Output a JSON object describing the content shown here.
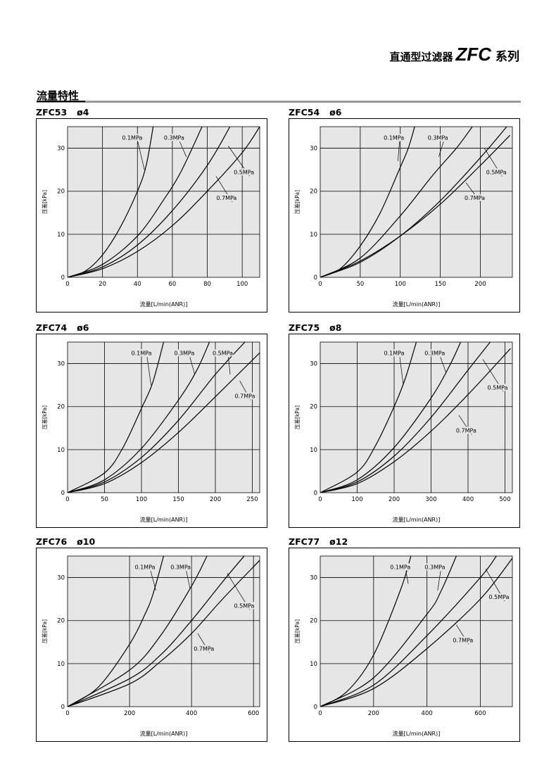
{
  "header": {
    "jp": "直通型过滤器",
    "brand": "ZFC",
    "series": "系列"
  },
  "section_title": "流量特性",
  "chart_data": [
    {
      "type": "line",
      "title": "ZFC53",
      "subtitle": "ø4",
      "xlabel": "流量[L/min(ANR)]",
      "ylabel": "压差[kPa]",
      "xlim": [
        0,
        110
      ],
      "ylim": [
        0,
        35
      ],
      "xticks": [
        0,
        20,
        40,
        60,
        80,
        100
      ],
      "yticks": [
        0,
        10,
        20,
        30
      ],
      "grid": true,
      "series": [
        {
          "name": "0.1MPa",
          "x": [
            0,
            10,
            20,
            30,
            40,
            45,
            49
          ],
          "y": [
            0,
            1.4,
            5.2,
            11.5,
            20,
            26,
            35
          ]
        },
        {
          "name": "0.3MPa",
          "x": [
            0,
            20,
            40,
            55,
            65,
            77
          ],
          "y": [
            0,
            3,
            9.6,
            18,
            24.6,
            35
          ]
        },
        {
          "name": "0.5MPa",
          "x": [
            0,
            20,
            40,
            60,
            80,
            93
          ],
          "y": [
            0,
            2.4,
            7.5,
            15.5,
            26,
            35
          ]
        },
        {
          "name": "0.7MPa",
          "x": [
            0,
            20,
            40,
            60,
            80,
            100,
            110
          ],
          "y": [
            0,
            2,
            6,
            12,
            20,
            29,
            35
          ]
        }
      ],
      "annotations": [
        {
          "text": "0.1MPa",
          "x": 37,
          "y": 32,
          "tx": 44,
          "ty": 25
        },
        {
          "text": "0.3MPa",
          "x": 61,
          "y": 32,
          "tx": 68,
          "ty": 28
        },
        {
          "text": "0.5MPa",
          "x": 101,
          "y": 24,
          "tx": 92,
          "ty": 30.5
        },
        {
          "text": "0.7MPa",
          "x": 91,
          "y": 18,
          "tx": 85,
          "ty": 23.5
        }
      ]
    },
    {
      "type": "line",
      "title": "ZFC54",
      "subtitle": "ø6",
      "xlabel": "流量[L/min(ANR)]",
      "ylabel": "压差[kPa]",
      "xlim": [
        0,
        240
      ],
      "ylim": [
        0,
        35
      ],
      "xticks": [
        0,
        50,
        100,
        150,
        200
      ],
      "yticks": [
        0,
        10,
        20,
        30
      ],
      "grid": true,
      "series": [
        {
          "name": "0.1MPa",
          "x": [
            0,
            25,
            50,
            75,
            100,
            110,
            118
          ],
          "y": [
            0,
            2,
            7.3,
            15,
            25.6,
            30,
            35
          ]
        },
        {
          "name": "0.3MPa",
          "x": [
            0,
            50,
            100,
            140,
            170,
            190
          ],
          "y": [
            0,
            4.5,
            14.3,
            23.6,
            30,
            35
          ]
        },
        {
          "name": "0.5MPa",
          "x": [
            0,
            50,
            100,
            150,
            200,
            233
          ],
          "y": [
            0,
            3.5,
            9.6,
            17.8,
            27.8,
            35
          ]
        },
        {
          "name": "0.7MPa",
          "x": [
            0,
            50,
            100,
            150,
            200,
            237
          ],
          "y": [
            0,
            3.8,
            9.6,
            17,
            26,
            33
          ]
        }
      ],
      "annotations": [
        {
          "text": "0.1MPa",
          "x": 92,
          "y": 32,
          "tx": 97,
          "ty": 27
        },
        {
          "text": "0.3MPa",
          "x": 147,
          "y": 32,
          "tx": 148,
          "ty": 28
        },
        {
          "text": "0.5MPa",
          "x": 220,
          "y": 24,
          "tx": 205,
          "ty": 30
        },
        {
          "text": "0.7MPa",
          "x": 193,
          "y": 18,
          "tx": 182,
          "ty": 22
        }
      ]
    },
    {
      "type": "line",
      "title": "ZFC74",
      "subtitle": "ø6",
      "xlabel": "流量[L/min(ANR)]",
      "ylabel": "压差[kPa]",
      "xlim": [
        0,
        260
      ],
      "ylim": [
        0,
        35
      ],
      "xticks": [
        0,
        50,
        100,
        150,
        200,
        250
      ],
      "yticks": [
        0,
        10,
        20,
        30
      ],
      "grid": true,
      "series": [
        {
          "name": "0.1MPa",
          "x": [
            0,
            50,
            75,
            100,
            115,
            130
          ],
          "y": [
            0,
            4.6,
            10.5,
            19.6,
            25.5,
            35
          ]
        },
        {
          "name": "0.3MPa",
          "x": [
            0,
            50,
            100,
            150,
            175,
            192
          ],
          "y": [
            0,
            3,
            10.3,
            21.5,
            28.5,
            35
          ]
        },
        {
          "name": "0.5MPa",
          "x": [
            0,
            50,
            100,
            150,
            200,
            240
          ],
          "y": [
            0,
            2.5,
            8.2,
            16.8,
            27.5,
            35
          ]
        },
        {
          "name": "0.7MPa",
          "x": [
            0,
            50,
            100,
            150,
            200,
            260
          ],
          "y": [
            0,
            2.1,
            7,
            14,
            22.3,
            32.5
          ]
        }
      ],
      "annotations": [
        {
          "text": "0.1MPa",
          "x": 100,
          "y": 32,
          "tx": 113,
          "ty": 25
        },
        {
          "text": "0.3MPa",
          "x": 158,
          "y": 32,
          "tx": 172,
          "ty": 27.5
        },
        {
          "text": "0.5MPa",
          "x": 210,
          "y": 32,
          "tx": 220,
          "ty": 27.5
        },
        {
          "text": "0.7MPa",
          "x": 240,
          "y": 22,
          "tx": 233,
          "ty": 26
        }
      ]
    },
    {
      "type": "line",
      "title": "ZFC75",
      "subtitle": "ø8",
      "xlabel": "流量[L/min(ANR)]",
      "ylabel": "压差[kPa]",
      "xlim": [
        0,
        520
      ],
      "ylim": [
        0,
        35
      ],
      "xticks": [
        0,
        100,
        200,
        300,
        400,
        500
      ],
      "yticks": [
        0,
        10,
        20,
        30
      ],
      "grid": true,
      "series": [
        {
          "name": "0.1MPa",
          "x": [
            0,
            100,
            150,
            200,
            230,
            260
          ],
          "y": [
            0,
            4.8,
            11,
            20,
            26.5,
            35
          ]
        },
        {
          "name": "0.3MPa",
          "x": [
            0,
            100,
            200,
            300,
            350,
            380
          ],
          "y": [
            0,
            3,
            10.5,
            22,
            29.5,
            35
          ]
        },
        {
          "name": "0.5MPa",
          "x": [
            0,
            100,
            200,
            300,
            400,
            460
          ],
          "y": [
            0,
            2.5,
            8.5,
            17.5,
            28.5,
            35
          ]
        },
        {
          "name": "0.7MPa",
          "x": [
            0,
            100,
            200,
            300,
            400,
            515
          ],
          "y": [
            0,
            2.1,
            7.2,
            14.3,
            22.8,
            33.5
          ]
        }
      ],
      "annotations": [
        {
          "text": "0.1MPa",
          "x": 200,
          "y": 32,
          "tx": 225,
          "ty": 25
        },
        {
          "text": "0.3MPa",
          "x": 310,
          "y": 32,
          "tx": 340,
          "ty": 28
        },
        {
          "text": "0.5MPa",
          "x": 480,
          "y": 24,
          "tx": 440,
          "ty": 31
        },
        {
          "text": "0.7MPa",
          "x": 395,
          "y": 14,
          "tx": 375,
          "ty": 18
        }
      ]
    },
    {
      "type": "line",
      "title": "ZFC76",
      "subtitle": "ø10",
      "xlabel": "流量[L/min(ANR)]",
      "ylabel": "压差[kPa]",
      "xlim": [
        0,
        620
      ],
      "ylim": [
        0,
        35
      ],
      "xticks": [
        0,
        200,
        400,
        600
      ],
      "yticks": [
        0,
        10,
        20,
        30
      ],
      "grid": true,
      "series": [
        {
          "name": "0.1MPa",
          "x": [
            0,
            100,
            200,
            250,
            275,
            310
          ],
          "y": [
            0,
            4.6,
            14.5,
            21.5,
            26,
            35
          ]
        },
        {
          "name": "0.3MPa",
          "x": [
            0,
            200,
            300,
            400,
            450
          ],
          "y": [
            0,
            8.5,
            16.5,
            28,
            35
          ]
        },
        {
          "name": "0.5MPa",
          "x": [
            0,
            200,
            300,
            400,
            500,
            570
          ],
          "y": [
            0,
            6.5,
            12,
            20,
            29,
            35
          ]
        },
        {
          "name": "0.7MPa",
          "x": [
            0,
            200,
            300,
            400,
            500,
            620
          ],
          "y": [
            0,
            5.3,
            10.5,
            17,
            25,
            34
          ]
        }
      ],
      "annotations": [
        {
          "text": "0.1MPa",
          "x": 250,
          "y": 32,
          "tx": 285,
          "ty": 27
        },
        {
          "text": "0.3MPa",
          "x": 365,
          "y": 32,
          "tx": 395,
          "ty": 27.5
        },
        {
          "text": "0.5MPa",
          "x": 570,
          "y": 23,
          "tx": 515,
          "ty": 31
        },
        {
          "text": "0.7MPa",
          "x": 440,
          "y": 13,
          "tx": 420,
          "ty": 17
        }
      ]
    },
    {
      "type": "line",
      "title": "ZFC77",
      "subtitle": "ø12",
      "xlabel": "流量[L/min(ANR)]",
      "ylabel": "压差[kPa]",
      "xlim": [
        0,
        720
      ],
      "ylim": [
        0,
        35
      ],
      "xticks": [
        0,
        200,
        400,
        600
      ],
      "yticks": [
        0,
        10,
        20,
        30
      ],
      "grid": true,
      "series": [
        {
          "name": "0.1MPa",
          "x": [
            0,
            100,
            200,
            300,
            340
          ],
          "y": [
            0,
            3.5,
            12,
            27,
            35
          ]
        },
        {
          "name": "0.3MPa",
          "x": [
            0,
            200,
            400,
            450,
            510
          ],
          "y": [
            0,
            6.7,
            21.5,
            26.5,
            35
          ]
        },
        {
          "name": "0.5MPa",
          "x": [
            0,
            200,
            400,
            600,
            660
          ],
          "y": [
            0,
            5,
            16.5,
            30,
            35
          ]
        },
        {
          "name": "0.7MPa",
          "x": [
            0,
            200,
            400,
            600,
            720
          ],
          "y": [
            0,
            4.2,
            13.5,
            25,
            34.5
          ]
        }
      ],
      "annotations": [
        {
          "text": "0.1MPa",
          "x": 300,
          "y": 32,
          "tx": 330,
          "ty": 28.5
        },
        {
          "text": "0.3MPa",
          "x": 430,
          "y": 32,
          "tx": 440,
          "ty": 27
        },
        {
          "text": "0.5MPa",
          "x": 670,
          "y": 25,
          "tx": 620,
          "ty": 32
        },
        {
          "text": "0.7MPa",
          "x": 535,
          "y": 15,
          "tx": 510,
          "ty": 19
        }
      ]
    }
  ]
}
